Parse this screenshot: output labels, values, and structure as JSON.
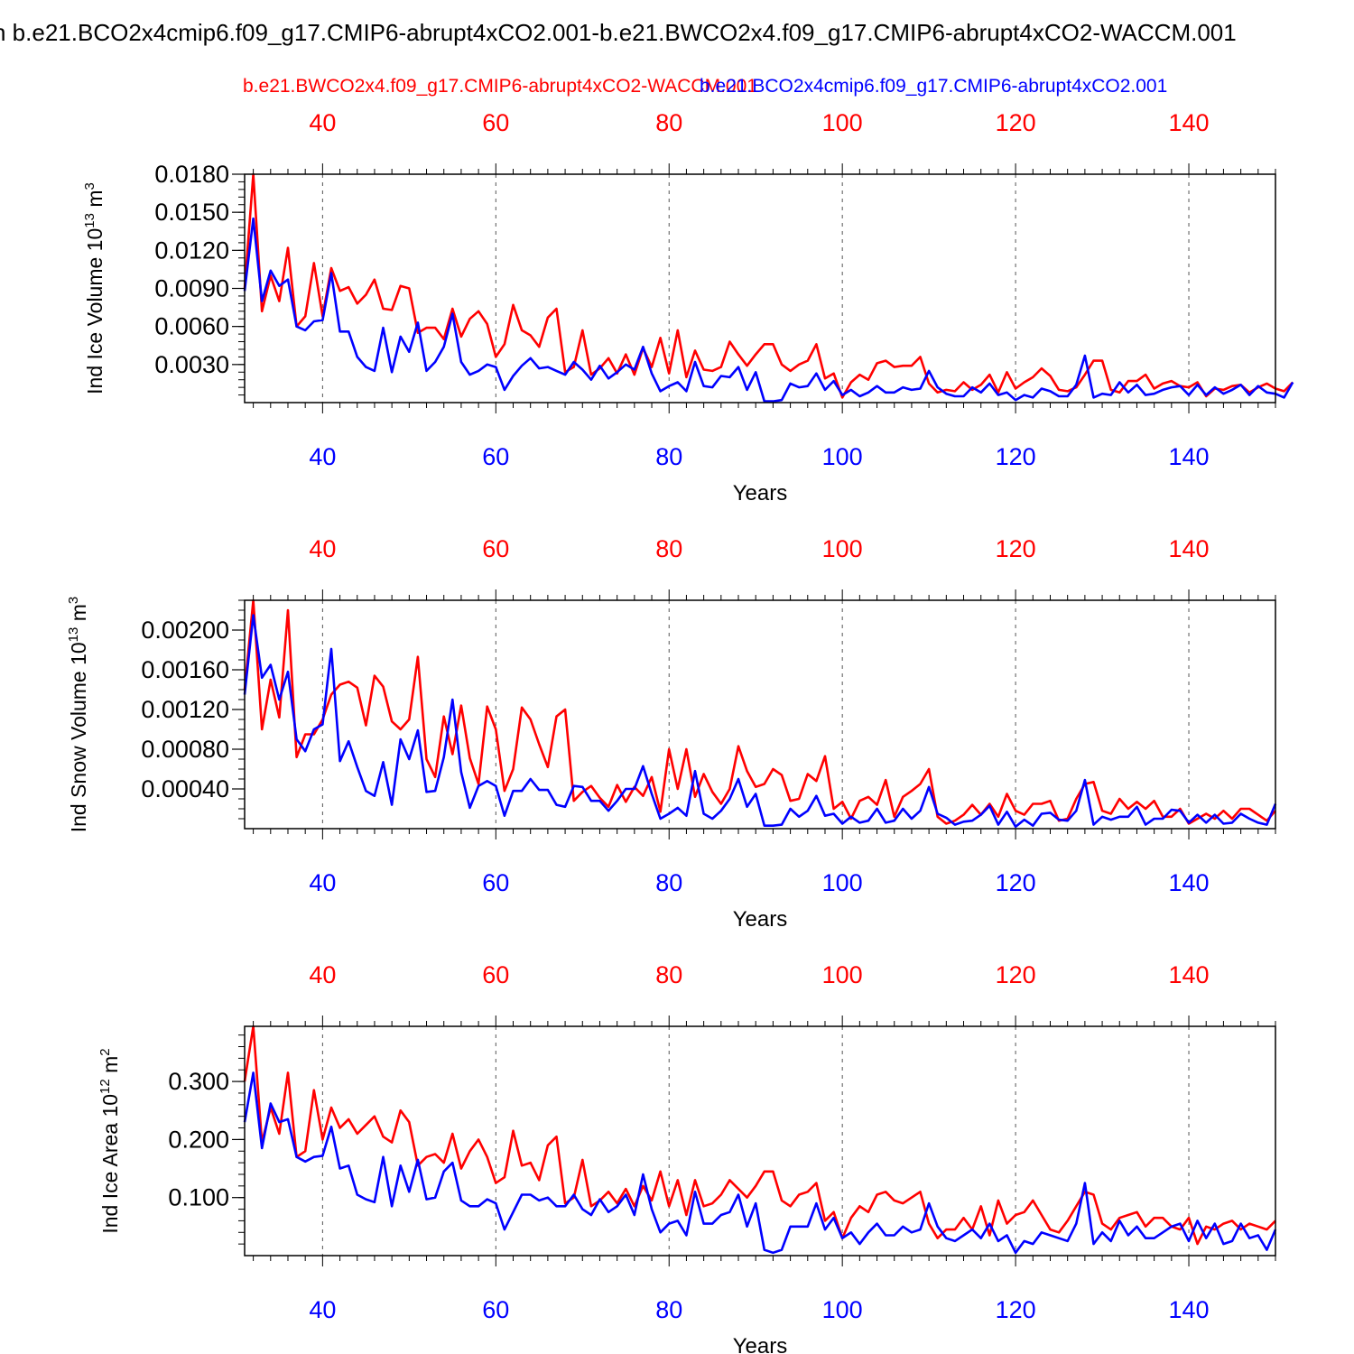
{
  "figure": {
    "title": "n b.e21.BCO2x4cmip6.f09_g17.CMIP6-abrupt4xCO2.001-b.e21.BWCO2x4.f09_g17.CMIP6-abrupt4xCO2-WACCM.001",
    "legend": {
      "red": "b.e21.BWCO2x4.f09_g17.CMIP6-abrupt4xCO2-WACCM.001",
      "blue": "b.e21.BCO2x4cmip6.f09_g17.CMIP6-abrupt4xCO2.001"
    },
    "colors": {
      "red": "#ff0000",
      "blue": "#0000ff",
      "axis": "#000000"
    }
  },
  "chart_data": [
    {
      "type": "line",
      "ylabel_main": "Ind Ice Volume 10",
      "ylabel_exp": "13",
      "ylabel_unit": " m",
      "ylabel_unit_exp": "3",
      "xlabel": "Years",
      "xlim": [
        31,
        150
      ],
      "ylim": [
        0,
        0.018
      ],
      "xticks": [
        40,
        60,
        80,
        100,
        120,
        140
      ],
      "xtick_labels": [
        "40",
        "60",
        "80",
        "100",
        "120",
        "140"
      ],
      "yticks": [
        0.003,
        0.006,
        0.009,
        0.012,
        0.015,
        0.018
      ],
      "ytick_labels": [
        "0.0030",
        "0.0060",
        "0.0090",
        "0.0120",
        "0.0150",
        "0.0180"
      ],
      "yminor": 0.0006,
      "x_start": 31,
      "series": [
        {
          "name": "b.e21.BWCO2x4.f09_g17.CMIP6-abrupt4xCO2-WACCM.001",
          "color": "red",
          "values": [
            0.009,
            0.018,
            0.0072,
            0.01,
            0.008,
            0.0122,
            0.006,
            0.0068,
            0.011,
            0.0068,
            0.0106,
            0.0088,
            0.0091,
            0.0078,
            0.0085,
            0.0097,
            0.0074,
            0.0073,
            0.0092,
            0.009,
            0.0055,
            0.0059,
            0.0059,
            0.005,
            0.0074,
            0.0052,
            0.0066,
            0.0072,
            0.0062,
            0.0036,
            0.0046,
            0.0077,
            0.0057,
            0.0053,
            0.0044,
            0.0067,
            0.0074,
            0.0024,
            0.0028,
            0.0057,
            0.0022,
            0.0027,
            0.0035,
            0.0023,
            0.0038,
            0.0022,
            0.0043,
            0.0028,
            0.0051,
            0.0023,
            0.0057,
            0.002,
            0.0041,
            0.0026,
            0.0025,
            0.0028,
            0.0048,
            0.0038,
            0.0029,
            0.0038,
            0.0046,
            0.0046,
            0.003,
            0.0025,
            0.003,
            0.0033,
            0.0046,
            0.0019,
            0.0023,
            0.0004,
            0.0016,
            0.0022,
            0.0018,
            0.0031,
            0.0033,
            0.0028,
            0.0029,
            0.0029,
            0.0036,
            0.0015,
            0.0008,
            0.001,
            0.0009,
            0.0016,
            0.001,
            0.0014,
            0.0022,
            0.0008,
            0.0024,
            0.0011,
            0.0016,
            0.002,
            0.0027,
            0.0021,
            0.001,
            0.0009,
            0.0012,
            0.0022,
            0.0033,
            0.0033,
            0.001,
            0.0008,
            0.0017,
            0.0017,
            0.0022,
            0.0011,
            0.0015,
            0.0017,
            0.0013,
            0.0012,
            0.0016,
            0.0005,
            0.0011,
            0.001,
            0.0013,
            0.0014,
            0.0008,
            0.0012,
            0.0015,
            0.0011,
            0.0009,
            0.0016
          ]
        },
        {
          "name": "b.e21.BCO2x4cmip6.f09_g17.CMIP6-abrupt4xCO2.001",
          "color": "blue",
          "values": [
            0.0088,
            0.0145,
            0.008,
            0.0104,
            0.0092,
            0.0097,
            0.006,
            0.0057,
            0.0064,
            0.0065,
            0.0102,
            0.0056,
            0.0056,
            0.0036,
            0.0028,
            0.0025,
            0.0059,
            0.0024,
            0.0052,
            0.004,
            0.0063,
            0.0025,
            0.0032,
            0.0044,
            0.007,
            0.0032,
            0.0022,
            0.0025,
            0.003,
            0.0028,
            0.001,
            0.0021,
            0.0029,
            0.0035,
            0.0027,
            0.0028,
            0.0025,
            0.0022,
            0.0032,
            0.0026,
            0.0018,
            0.0029,
            0.0019,
            0.0024,
            0.003,
            0.0026,
            0.0044,
            0.0023,
            0.0009,
            0.0013,
            0.0016,
            0.0009,
            0.0032,
            0.0013,
            0.0012,
            0.0021,
            0.002,
            0.0028,
            0.001,
            0.0024,
            0.0001,
            0.0001,
            0.0002,
            0.0015,
            0.0012,
            0.0013,
            0.0023,
            0.001,
            0.0017,
            0.0006,
            0.001,
            0.0005,
            0.0008,
            0.0013,
            0.0008,
            0.0008,
            0.0012,
            0.001,
            0.0011,
            0.0025,
            0.0012,
            0.0007,
            0.0005,
            0.0005,
            0.0012,
            0.0008,
            0.0015,
            0.0006,
            0.0008,
            0.0002,
            0.0006,
            0.0004,
            0.0011,
            0.0009,
            0.0005,
            0.0005,
            0.0014,
            0.0037,
            0.0004,
            0.0007,
            0.0006,
            0.0016,
            0.0008,
            0.0014,
            0.0006,
            0.0007,
            0.001,
            0.0012,
            0.0013,
            0.0006,
            0.0014,
            0.0006,
            0.0012,
            0.0007,
            0.001,
            0.0014,
            0.0006,
            0.0013,
            0.0008,
            0.0007,
            0.0004,
            0.0016
          ]
        }
      ]
    },
    {
      "type": "line",
      "ylabel_main": "Ind Snow Volume 10",
      "ylabel_exp": "13",
      "ylabel_unit": " m",
      "ylabel_unit_exp": "3",
      "xlabel": "Years",
      "xlim": [
        31,
        150
      ],
      "ylim": [
        0,
        0.0023
      ],
      "xticks": [
        40,
        60,
        80,
        100,
        120,
        140
      ],
      "xtick_labels": [
        "40",
        "60",
        "80",
        "100",
        "120",
        "140"
      ],
      "yticks": [
        0.0004,
        0.0008,
        0.0012,
        0.0016,
        0.002
      ],
      "ytick_labels": [
        "0.00040",
        "0.00080",
        "0.00120",
        "0.00160",
        "0.00200"
      ],
      "yminor": 0.0001,
      "x_start": 31,
      "series": [
        {
          "name": "b.e21.BWCO2x4.f09_g17.CMIP6-abrupt4xCO2-WACCM.001",
          "color": "red",
          "values": [
            0.0014,
            0.0023,
            0.001,
            0.0015,
            0.00112,
            0.0022,
            0.00072,
            0.00095,
            0.00095,
            0.0011,
            0.00135,
            0.00145,
            0.00148,
            0.00142,
            0.00104,
            0.00154,
            0.00143,
            0.00108,
            0.001,
            0.0011,
            0.00173,
            0.0007,
            0.00052,
            0.00113,
            0.00075,
            0.00124,
            0.00071,
            0.00045,
            0.00123,
            0.001,
            0.00038,
            0.0006,
            0.00122,
            0.0011,
            0.00085,
            0.00062,
            0.00113,
            0.0012,
            0.00028,
            0.00037,
            0.00043,
            0.00031,
            0.00022,
            0.00044,
            0.00027,
            0.00042,
            0.00033,
            0.00052,
            0.00017,
            0.0008,
            0.0004,
            0.0008,
            0.00032,
            0.00055,
            0.00037,
            0.00025,
            0.0004,
            0.00083,
            0.00058,
            0.00042,
            0.00045,
            0.0006,
            0.00054,
            0.00028,
            0.0003,
            0.00055,
            0.00048,
            0.00073,
            0.0002,
            0.00027,
            0.0001,
            0.00028,
            0.00032,
            0.00024,
            0.00049,
            0.00012,
            0.00032,
            0.00038,
            0.00045,
            0.0006,
            0.00012,
            5e-05,
            8e-05,
            0.00014,
            0.00024,
            0.00014,
            0.00025,
            0.00012,
            0.00035,
            0.00018,
            0.00014,
            0.00025,
            0.00025,
            0.00028,
            8e-05,
            0.0001,
            0.0003,
            0.00045,
            0.00047,
            0.00018,
            0.00015,
            0.0003,
            0.0002,
            0.00027,
            0.0002,
            0.00028,
            0.00012,
            0.00012,
            0.0002,
            5e-05,
            0.0001,
            0.00015,
            0.0001,
            0.00018,
            0.0001,
            0.0002,
            0.0002,
            0.00014,
            8e-05,
            0.00018
          ]
        },
        {
          "name": "b.e21.BCO2x4cmip6.f09_g17.CMIP6-abrupt4xCO2.001",
          "color": "blue",
          "values": [
            0.00135,
            0.00215,
            0.00152,
            0.00165,
            0.0013,
            0.00158,
            0.0009,
            0.00078,
            0.001,
            0.00105,
            0.00181,
            0.00068,
            0.00088,
            0.00062,
            0.00038,
            0.00033,
            0.00067,
            0.00024,
            0.0009,
            0.0007,
            0.00099,
            0.00037,
            0.00038,
            0.00072,
            0.0013,
            0.00057,
            0.00021,
            0.00043,
            0.00048,
            0.00043,
            0.00013,
            0.00038,
            0.00038,
            0.0005,
            0.00039,
            0.00039,
            0.00024,
            0.00022,
            0.00043,
            0.00042,
            0.00028,
            0.00028,
            0.00018,
            0.00028,
            0.0004,
            0.0004,
            0.00063,
            0.00035,
            0.0001,
            0.00015,
            0.00021,
            0.00013,
            0.00058,
            0.00015,
            0.0001,
            0.00018,
            0.0003,
            0.0005,
            0.00022,
            0.00035,
            3e-05,
            3e-05,
            4e-05,
            0.0002,
            0.00012,
            0.00018,
            0.00033,
            0.00013,
            0.00015,
            5e-05,
            0.00012,
            6e-05,
            8e-05,
            0.0002,
            6e-05,
            8e-05,
            0.0002,
            0.0001,
            0.00018,
            0.00042,
            0.00015,
            0.00011,
            4e-05,
            7e-05,
            8e-05,
            0.00014,
            0.00023,
            4e-05,
            0.00017,
            2e-05,
            9e-05,
            3e-05,
            0.00015,
            0.00016,
            9e-05,
            8e-05,
            0.00018,
            0.00049,
            4e-05,
            0.00012,
            9e-05,
            0.00012,
            0.00012,
            0.00022,
            4e-05,
            0.0001,
            0.0001,
            0.00019,
            0.00018,
            6e-05,
            0.00014,
            6e-05,
            0.00014,
            5e-05,
            6e-05,
            0.00015,
            0.0001,
            6e-05,
            4e-05,
            0.00025
          ]
        }
      ]
    },
    {
      "type": "line",
      "ylabel_main": "Ind Ice Area 10",
      "ylabel_exp": "12",
      "ylabel_unit": " m",
      "ylabel_unit_exp": "2",
      "xlabel": "Years",
      "xlim": [
        31,
        150
      ],
      "ylim": [
        0,
        0.395
      ],
      "xticks": [
        40,
        60,
        80,
        100,
        120,
        140
      ],
      "xtick_labels": [
        "40",
        "60",
        "80",
        "100",
        "120",
        "140"
      ],
      "yticks": [
        0.1,
        0.2,
        0.3
      ],
      "ytick_labels": [
        "0.100",
        "0.200",
        "0.300"
      ],
      "yminor": 0.02,
      "x_start": 31,
      "series": [
        {
          "name": "b.e21.BWCO2x4.f09_g17.CMIP6-abrupt4xCO2-WACCM.001",
          "color": "red",
          "values": [
            0.3,
            0.395,
            0.195,
            0.255,
            0.21,
            0.315,
            0.17,
            0.18,
            0.285,
            0.2,
            0.255,
            0.22,
            0.235,
            0.21,
            0.225,
            0.24,
            0.205,
            0.195,
            0.25,
            0.23,
            0.155,
            0.17,
            0.175,
            0.16,
            0.21,
            0.15,
            0.18,
            0.2,
            0.17,
            0.125,
            0.135,
            0.215,
            0.155,
            0.16,
            0.13,
            0.19,
            0.205,
            0.09,
            0.1,
            0.165,
            0.085,
            0.095,
            0.11,
            0.09,
            0.115,
            0.085,
            0.12,
            0.095,
            0.145,
            0.085,
            0.13,
            0.07,
            0.13,
            0.085,
            0.09,
            0.105,
            0.13,
            0.115,
            0.1,
            0.12,
            0.145,
            0.145,
            0.095,
            0.085,
            0.105,
            0.11,
            0.125,
            0.06,
            0.075,
            0.03,
            0.065,
            0.085,
            0.075,
            0.105,
            0.11,
            0.095,
            0.09,
            0.1,
            0.11,
            0.055,
            0.03,
            0.045,
            0.045,
            0.065,
            0.045,
            0.085,
            0.035,
            0.095,
            0.055,
            0.07,
            0.075,
            0.095,
            0.07,
            0.045,
            0.04,
            0.06,
            0.085,
            0.11,
            0.105,
            0.055,
            0.045,
            0.065,
            0.07,
            0.075,
            0.05,
            0.065,
            0.065,
            0.05,
            0.045,
            0.065,
            0.02,
            0.05,
            0.045,
            0.055,
            0.06,
            0.045,
            0.055,
            0.05,
            0.045,
            0.06
          ]
        },
        {
          "name": "b.e21.BCO2x4cmip6.f09_g17.CMIP6-abrupt4xCO2.001",
          "color": "blue",
          "values": [
            0.23,
            0.315,
            0.185,
            0.262,
            0.23,
            0.235,
            0.17,
            0.162,
            0.17,
            0.172,
            0.222,
            0.15,
            0.155,
            0.105,
            0.097,
            0.092,
            0.17,
            0.085,
            0.155,
            0.11,
            0.165,
            0.097,
            0.1,
            0.145,
            0.16,
            0.095,
            0.085,
            0.085,
            0.097,
            0.09,
            0.045,
            0.075,
            0.105,
            0.105,
            0.095,
            0.1,
            0.085,
            0.085,
            0.105,
            0.08,
            0.07,
            0.097,
            0.075,
            0.085,
            0.105,
            0.07,
            0.14,
            0.08,
            0.04,
            0.055,
            0.06,
            0.035,
            0.11,
            0.055,
            0.055,
            0.07,
            0.075,
            0.105,
            0.05,
            0.09,
            0.01,
            0.005,
            0.01,
            0.05,
            0.05,
            0.05,
            0.09,
            0.045,
            0.065,
            0.03,
            0.04,
            0.02,
            0.04,
            0.055,
            0.035,
            0.035,
            0.05,
            0.04,
            0.045,
            0.09,
            0.05,
            0.03,
            0.025,
            0.035,
            0.045,
            0.03,
            0.055,
            0.025,
            0.035,
            0.005,
            0.025,
            0.02,
            0.04,
            0.035,
            0.03,
            0.025,
            0.055,
            0.125,
            0.02,
            0.04,
            0.025,
            0.06,
            0.035,
            0.05,
            0.03,
            0.03,
            0.04,
            0.05,
            0.055,
            0.025,
            0.06,
            0.03,
            0.055,
            0.02,
            0.025,
            0.055,
            0.03,
            0.035,
            0.01,
            0.045
          ]
        }
      ]
    }
  ]
}
